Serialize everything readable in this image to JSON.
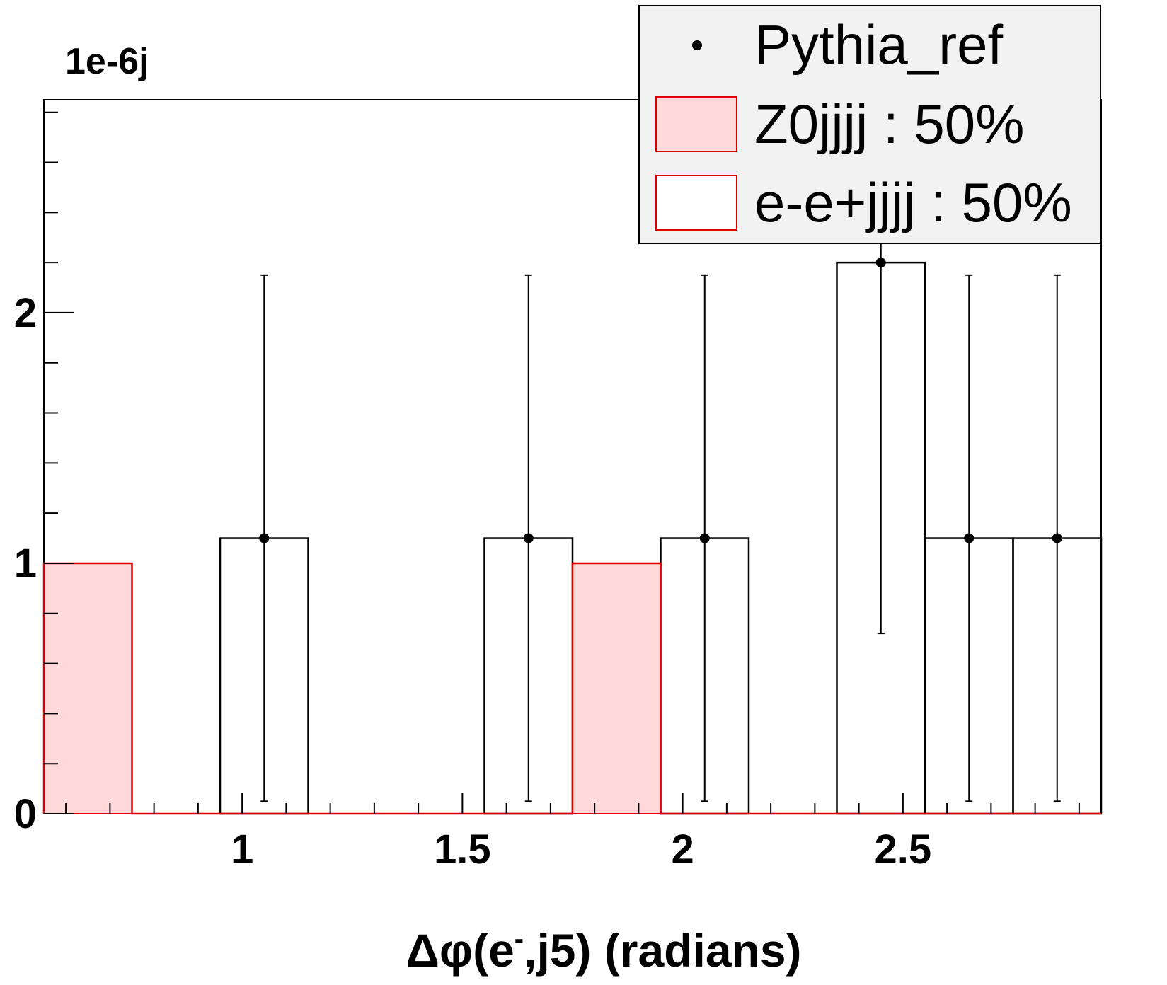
{
  "chart_data": {
    "type": "bar",
    "ylabel_multiplier": "1e-6j",
    "xlabel_prefix": "Δφ(e",
    "xlabel_superscript": "-",
    "xlabel_suffix": ",j5) (radians)",
    "xlim": [
      0.55,
      2.95
    ],
    "ylim": [
      0,
      2.85
    ],
    "x_ticks": [
      1,
      1.5,
      2,
      2.5
    ],
    "x_tick_labels": [
      "1",
      "1.5",
      "2",
      "2.5"
    ],
    "y_ticks": [
      0,
      1,
      2
    ],
    "y_tick_labels": [
      "0",
      "1",
      "2"
    ],
    "bin_edges": [
      0.55,
      0.75,
      0.95,
      1.15,
      1.35,
      1.55,
      1.75,
      1.95,
      2.15,
      2.35,
      2.55,
      2.75,
      2.95
    ],
    "series": [
      {
        "name": "Pythia_ref",
        "kind": "points",
        "color": "#000000",
        "x": [
          1.05,
          1.65,
          2.05,
          2.45,
          2.65,
          2.85
        ],
        "y": [
          1.1,
          1.1,
          1.1,
          2.2,
          1.1,
          1.1
        ],
        "err_low": [
          1.05,
          1.05,
          1.05,
          1.48,
          1.05,
          1.05
        ],
        "err_high": [
          1.05,
          1.05,
          1.05,
          1.48,
          1.05,
          1.05
        ]
      },
      {
        "name": "Z0jjjj : 50%",
        "kind": "filled-hist",
        "line_color": "#e00000",
        "fill_color": "#ffd9d9",
        "values": [
          1,
          0,
          0,
          0,
          0,
          0,
          1,
          0,
          0,
          0,
          0,
          0
        ]
      },
      {
        "name": "e-e+jjjj : 50%",
        "kind": "hollow-hist",
        "line_color": "#e00000",
        "fill_color": "#ffffff",
        "values": [
          0,
          0,
          0,
          0,
          0,
          0,
          0,
          0,
          0,
          0,
          0,
          0
        ]
      }
    ],
    "reference_hist": {
      "line_color": "#000000",
      "values": [
        0,
        0,
        1.1,
        0,
        0,
        1.1,
        0,
        1.1,
        0,
        2.2,
        1.1,
        1.1
      ]
    },
    "legend": {
      "placement": "top-right",
      "background": "#f2f2f2"
    }
  }
}
